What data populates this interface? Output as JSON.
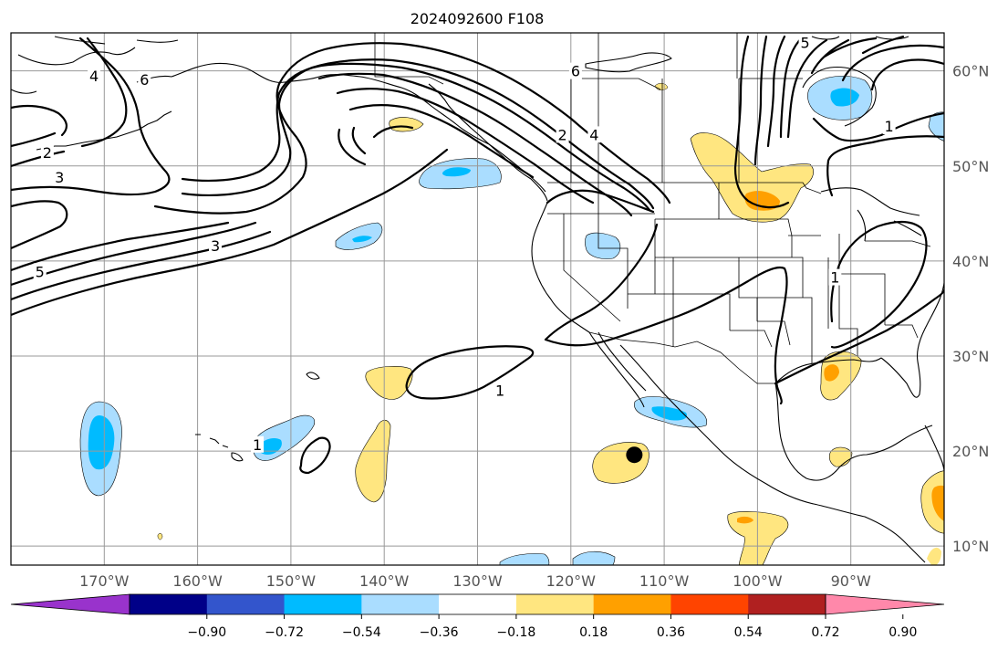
{
  "title": "2024092600 F108",
  "chart_data": {
    "type": "map",
    "title": "2024092600 F108",
    "projection": "equirectangular",
    "lon_range": [
      -180,
      -80
    ],
    "lat_range": [
      8,
      64
    ],
    "lon_ticks": [
      {
        "lon": -170,
        "label": "170°W"
      },
      {
        "lon": -160,
        "label": "160°W"
      },
      {
        "lon": -150,
        "label": "150°W"
      },
      {
        "lon": -140,
        "label": "140°W"
      },
      {
        "lon": -130,
        "label": "130°W"
      },
      {
        "lon": -120,
        "label": "120°W"
      },
      {
        "lon": -110,
        "label": "110°W"
      },
      {
        "lon": -100,
        "label": "100°W"
      },
      {
        "lon": -90,
        "label": "90°W"
      }
    ],
    "lat_ticks": [
      {
        "lat": 60,
        "label": "60°N"
      },
      {
        "lat": 50,
        "label": "50°N"
      },
      {
        "lat": 40,
        "label": "40°N"
      },
      {
        "lat": 30,
        "label": "30°N"
      },
      {
        "lat": 20,
        "label": "20°N"
      },
      {
        "lat": 10,
        "label": "10°N"
      }
    ],
    "colorbar": {
      "levels": [
        -0.9,
        -0.72,
        -0.54,
        -0.36,
        -0.18,
        0.18,
        0.36,
        0.54,
        0.72,
        0.9
      ],
      "tick_labels": [
        "−0.90",
        "−0.72",
        "−0.54",
        "−0.36",
        "−0.18",
        "0.18",
        "0.36",
        "0.54",
        "0.72",
        "0.90"
      ],
      "colors": [
        "#9933cc",
        "#000088",
        "#3355cc",
        "#00bbff",
        "#aaddff",
        "#ffffff",
        "#ffe680",
        "#ffa000",
        "#ff4400",
        "#b02020",
        "#ff88aa"
      ],
      "extend": "both"
    },
    "contour_labels": [
      {
        "text": "4",
        "lon": -171.1,
        "lat": 59.5
      },
      {
        "text": "6",
        "lon": -165.7,
        "lat": 59.1
      },
      {
        "text": "2",
        "lon": -176.1,
        "lat": 51.4
      },
      {
        "text": "3",
        "lon": -174.8,
        "lat": 48.8
      },
      {
        "text": "3",
        "lon": -158.1,
        "lat": 41.6
      },
      {
        "text": "5",
        "lon": -176.9,
        "lat": 38.9
      },
      {
        "text": "6",
        "lon": -119.5,
        "lat": 60.0
      },
      {
        "text": "2",
        "lon": -120.9,
        "lat": 53.3
      },
      {
        "text": "4",
        "lon": -117.5,
        "lat": 53.3
      },
      {
        "text": "5",
        "lon": -94.9,
        "lat": 63.0
      },
      {
        "text": "1",
        "lon": -85.9,
        "lat": 54.2
      },
      {
        "text": "1",
        "lon": -91.7,
        "lat": 38.3
      },
      {
        "text": "1",
        "lon": -127.6,
        "lat": 26.4
      },
      {
        "text": "1",
        "lon": -153.6,
        "lat": 20.7
      }
    ],
    "marker": {
      "type": "dot",
      "lon": -113.2,
      "lat": 19.6,
      "color": "#000000"
    },
    "shaded_features": [
      {
        "sign": "negative",
        "band": "-0.36 to -0.18",
        "max_band": "-0.54 to -0.36",
        "region": "Central Pacific near 20°N 170°W"
      },
      {
        "sign": "negative",
        "band": "-0.36 to -0.18",
        "max_band": "-0.54 to -0.36",
        "region": "Pacific near 21°N 151°W"
      },
      {
        "sign": "negative",
        "band": "-0.36 to -0.18",
        "max_band": "-0.54 to -0.36",
        "region": "NE Pacific near 50°N 133°W"
      },
      {
        "sign": "negative",
        "band": "-0.36 to -0.18",
        "max_band": "-0.54 to -0.36",
        "region": "NE Pacific near 43°N 139°W"
      },
      {
        "sign": "negative",
        "band": "-0.36 to -0.18",
        "max_band": "-0.54 to -0.36",
        "region": "Hudson Bay near 57°N 91°W"
      },
      {
        "sign": "negative",
        "band": "-0.36 to -0.18",
        "max_band": "-0.54 to -0.36",
        "region": "Gulf of California near 23°N 109°W"
      },
      {
        "sign": "negative",
        "band": "-0.36 to -0.18",
        "region": "Great Basin near 42°N 119°W"
      },
      {
        "sign": "positive",
        "band": "0.18 to 0.36",
        "max_band": "0.36 to 0.54",
        "region": "Northern Plains near 48°N 101°W"
      },
      {
        "sign": "positive",
        "band": "0.18 to 0.36",
        "max_band": "0.36 to 0.54",
        "region": "Gulf coast near 29°N 89°W"
      },
      {
        "sign": "positive",
        "band": "0.18 to 0.36",
        "max_band": "0.36 to 0.54",
        "region": "Central America Pacific near 14°N 80°W"
      },
      {
        "sign": "positive",
        "band": "0.18 to 0.36",
        "region": "Pacific near 28°N 138°W"
      },
      {
        "sign": "positive",
        "band": "0.18 to 0.36",
        "region": "Pacific near 20°N 140°W"
      },
      {
        "sign": "positive",
        "band": "0.18 to 0.36",
        "region": "Pacific near 19°N 115°W"
      },
      {
        "sign": "positive",
        "band": "0.18 to 0.36",
        "max_band": "0.36 to 0.54",
        "region": "Pacific near 12°N 101°W"
      }
    ]
  }
}
